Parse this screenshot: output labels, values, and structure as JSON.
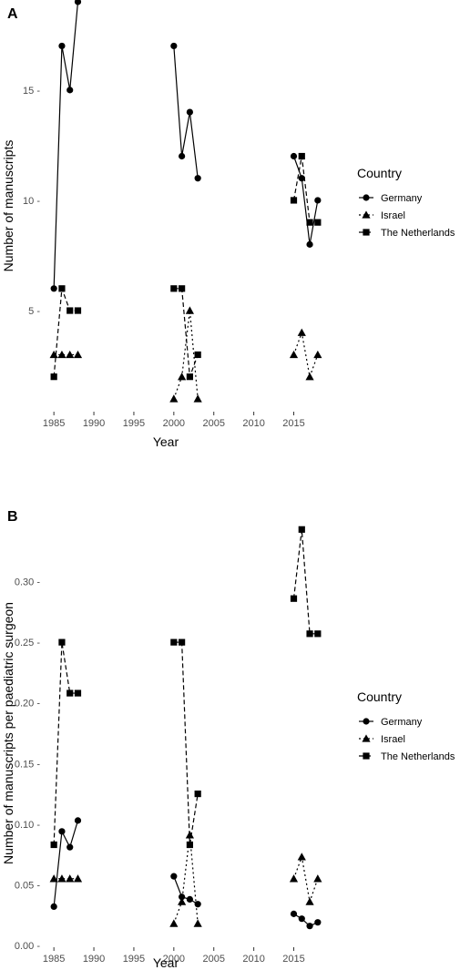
{
  "chart_data": [
    {
      "type": "line",
      "panel_label": "A",
      "xlabel": "Year",
      "ylabel": "Number of manuscripts",
      "xlim": [
        1983.5,
        2019.5
      ],
      "ylim": [
        0.5,
        19.0
      ],
      "x_ticks": [
        1985,
        1990,
        1995,
        2000,
        2005,
        2010,
        2015
      ],
      "y_ticks": [
        5,
        10,
        15
      ],
      "y_tick_labels": [
        "5 -",
        "10 -",
        "15 -"
      ],
      "grid": false,
      "legend_position": "right",
      "legend_title": "Country",
      "series": [
        {
          "name": "Germany",
          "marker": "circle",
          "linestyle": "solid",
          "segments": [
            [
              [
                1985,
                6
              ],
              [
                1986,
                17
              ],
              [
                1987,
                15
              ],
              [
                1988,
                19
              ]
            ],
            [
              [
                2000,
                17
              ],
              [
                2001,
                12
              ],
              [
                2002,
                14
              ],
              [
                2003,
                11
              ]
            ],
            [
              [
                2015,
                12
              ],
              [
                2016,
                11
              ],
              [
                2017,
                8
              ],
              [
                2018,
                10
              ]
            ]
          ]
        },
        {
          "name": "Israel",
          "marker": "triangle",
          "linestyle": "dotted",
          "segments": [
            [
              [
                1985,
                3
              ],
              [
                1986,
                3
              ],
              [
                1987,
                3
              ],
              [
                1988,
                3
              ]
            ],
            [
              [
                2000,
                1
              ],
              [
                2001,
                2
              ],
              [
                2002,
                5
              ],
              [
                2003,
                1
              ]
            ],
            [
              [
                2015,
                3
              ],
              [
                2016,
                4
              ],
              [
                2017,
                2
              ],
              [
                2018,
                3
              ]
            ]
          ]
        },
        {
          "name": "The Netherlands",
          "marker": "square",
          "linestyle": "dashed",
          "segments": [
            [
              [
                1985,
                2
              ],
              [
                1986,
                6
              ],
              [
                1987,
                5
              ],
              [
                1988,
                5
              ]
            ],
            [
              [
                2000,
                6
              ],
              [
                2001,
                6
              ],
              [
                2002,
                2
              ],
              [
                2003,
                3
              ]
            ],
            [
              [
                2015,
                10
              ],
              [
                2016,
                12
              ],
              [
                2017,
                9
              ],
              [
                2018,
                9
              ]
            ]
          ]
        }
      ]
    },
    {
      "type": "line",
      "panel_label": "B",
      "xlabel": "Year",
      "ylabel": "Number of manuscripts per paediatric surgeon",
      "xlim": [
        1983.5,
        2019.5
      ],
      "ylim": [
        0.0,
        0.35
      ],
      "x_ticks": [
        1985,
        1990,
        1995,
        2000,
        2005,
        2010,
        2015
      ],
      "y_ticks": [
        0.0,
        0.05,
        0.1,
        0.15,
        0.2,
        0.25,
        0.3
      ],
      "y_tick_labels": [
        "0.00 -",
        "0.05 -",
        "0.10 -",
        "0.15 -",
        "0.20 -",
        "0.25 -",
        "0.30 -"
      ],
      "grid": false,
      "legend_position": "right",
      "legend_title": "Country",
      "series": [
        {
          "name": "Germany",
          "marker": "circle",
          "linestyle": "solid",
          "segments": [
            [
              [
                1985,
                0.032
              ],
              [
                1986,
                0.094
              ],
              [
                1987,
                0.081
              ],
              [
                1988,
                0.103
              ]
            ],
            [
              [
                2000,
                0.057
              ],
              [
                2001,
                0.04
              ],
              [
                2002,
                0.038
              ],
              [
                2003,
                0.034
              ]
            ],
            [
              [
                2015,
                0.026
              ],
              [
                2016,
                0.022
              ],
              [
                2017,
                0.016
              ],
              [
                2018,
                0.019
              ]
            ]
          ]
        },
        {
          "name": "Israel",
          "marker": "triangle",
          "linestyle": "dotted",
          "segments": [
            [
              [
                1985,
                0.055
              ],
              [
                1986,
                0.055
              ],
              [
                1987,
                0.055
              ],
              [
                1988,
                0.055
              ]
            ],
            [
              [
                2000,
                0.018
              ],
              [
                2001,
                0.036
              ],
              [
                2002,
                0.091
              ],
              [
                2003,
                0.018
              ]
            ],
            [
              [
                2015,
                0.055
              ],
              [
                2016,
                0.073
              ],
              [
                2017,
                0.036
              ],
              [
                2018,
                0.055
              ]
            ]
          ]
        },
        {
          "name": "The Netherlands",
          "marker": "square",
          "linestyle": "dashed",
          "segments": [
            [
              [
                1985,
                0.083
              ],
              [
                1986,
                0.25
              ],
              [
                1987,
                0.208
              ],
              [
                1988,
                0.208
              ]
            ],
            [
              [
                2000,
                0.25
              ],
              [
                2001,
                0.25
              ],
              [
                2002,
                0.083
              ],
              [
                2003,
                0.125
              ]
            ],
            [
              [
                2015,
                0.286
              ],
              [
                2016,
                0.343
              ],
              [
                2017,
                0.257
              ],
              [
                2018,
                0.257
              ]
            ]
          ]
        }
      ]
    }
  ]
}
